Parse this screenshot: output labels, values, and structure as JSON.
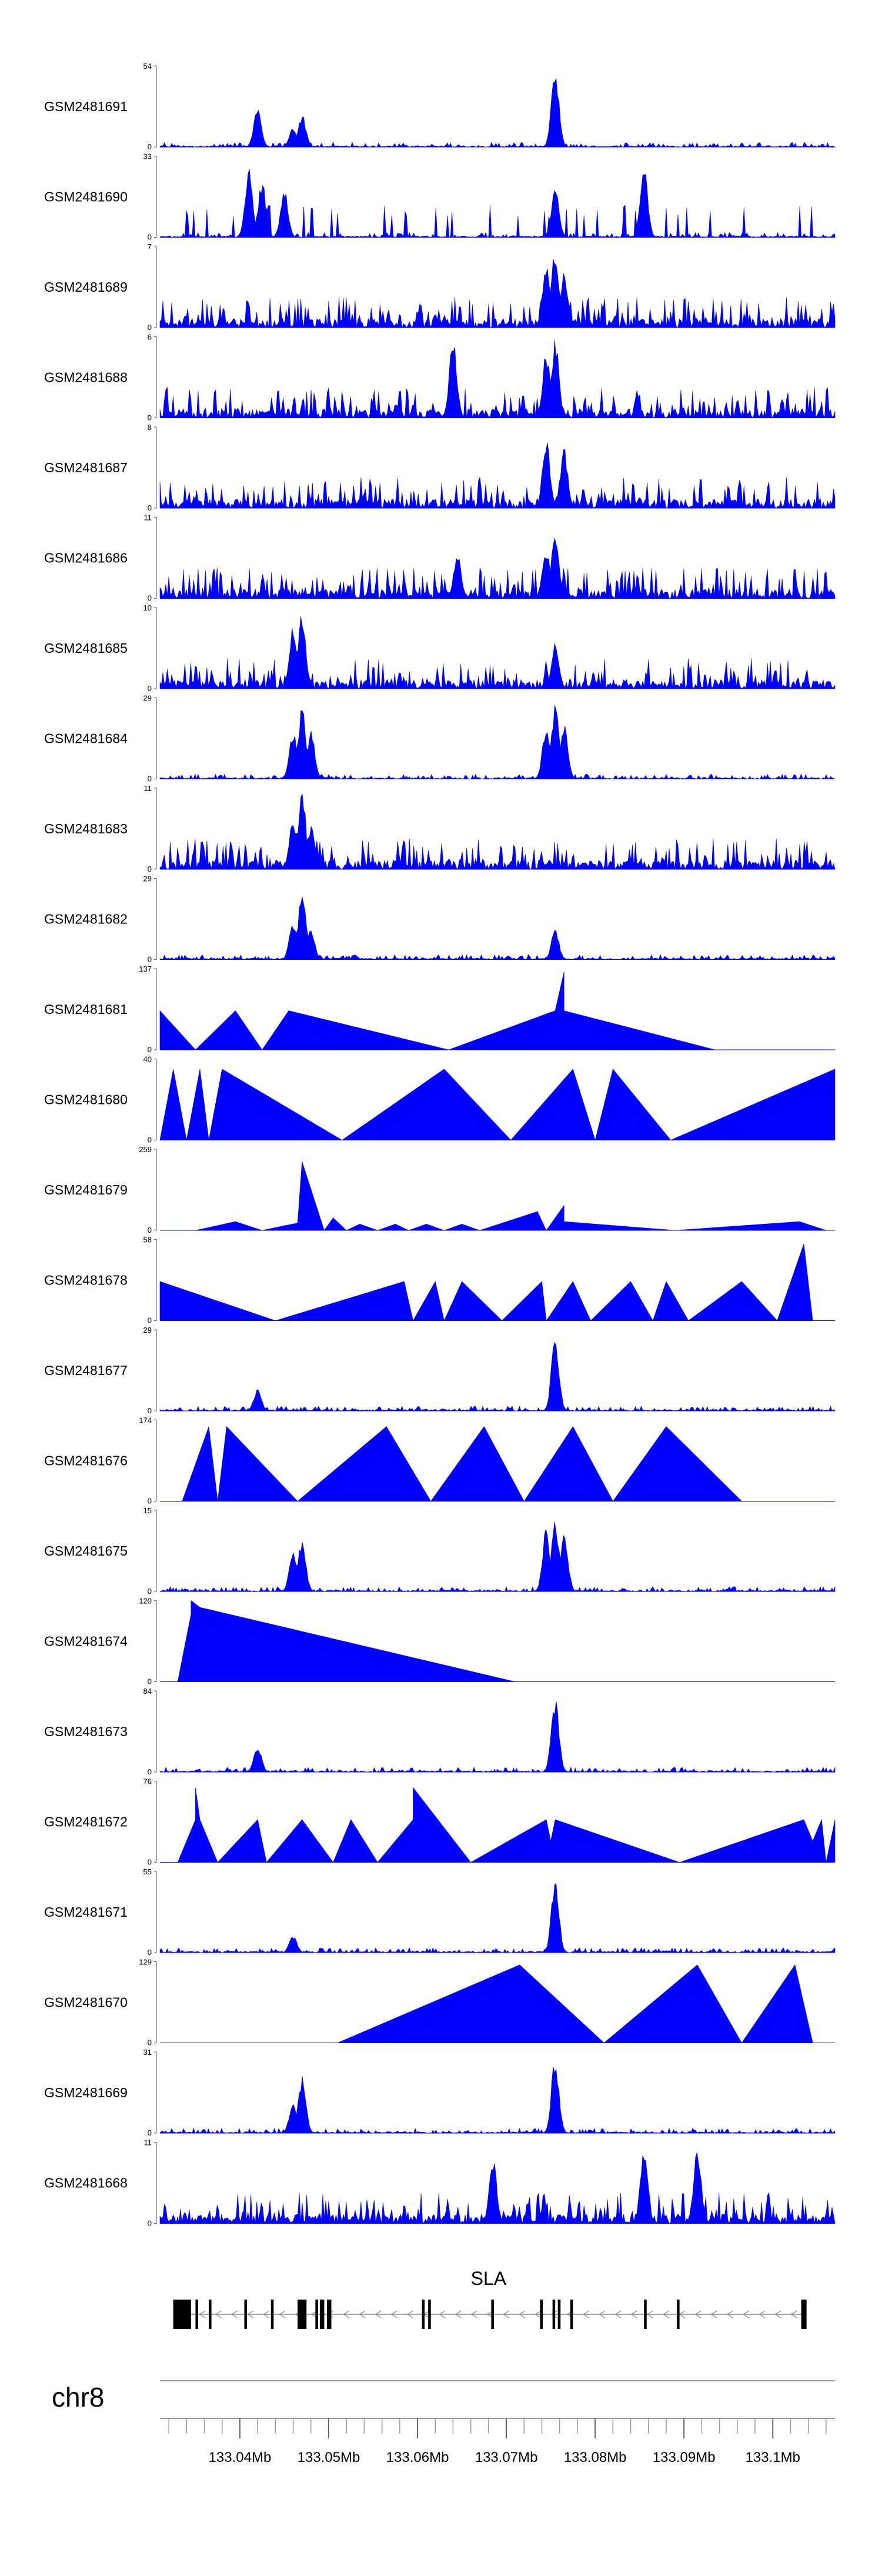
{
  "chart_data": {
    "type": "area",
    "title": "",
    "region": {
      "chromosome": "chr8",
      "start_mb": 133.031,
      "end_mb": 133.107
    },
    "series_color": "#0000ff",
    "tracks": [
      {
        "name": "GSM2481691",
        "ymax": 54,
        "style": "signal",
        "peaks": [
          [
            133.042,
            28
          ],
          [
            133.046,
            13
          ],
          [
            133.047,
            22
          ],
          [
            133.0755,
            52
          ]
        ]
      },
      {
        "name": "GSM2481690",
        "ymax": 33,
        "style": "mixed",
        "peaks": [
          [
            133.041,
            29
          ],
          [
            133.0425,
            24
          ],
          [
            133.045,
            20
          ],
          [
            133.0755,
            22
          ],
          [
            133.0855,
            30
          ]
        ]
      },
      {
        "name": "GSM2481689",
        "ymax": 7,
        "style": "signal",
        "peaks": [
          [
            133.0745,
            6
          ],
          [
            133.0755,
            7
          ],
          [
            133.0765,
            5
          ]
        ]
      },
      {
        "name": "GSM2481688",
        "ymax": 6,
        "style": "signal",
        "peaks": [
          [
            133.064,
            6
          ],
          [
            133.0745,
            5
          ],
          [
            133.0755,
            6
          ]
        ]
      },
      {
        "name": "GSM2481687",
        "ymax": 8,
        "style": "signal",
        "peaks": [
          [
            133.0745,
            7
          ],
          [
            133.0765,
            6
          ]
        ]
      },
      {
        "name": "GSM2481686",
        "ymax": 11,
        "style": "signal",
        "peaks": [
          [
            133.0645,
            6
          ],
          [
            133.0745,
            7
          ],
          [
            133.0755,
            10
          ]
        ]
      },
      {
        "name": "GSM2481685",
        "ymax": 10,
        "style": "signal",
        "peaks": [
          [
            133.046,
            8
          ],
          [
            133.047,
            10
          ],
          [
            133.0755,
            6
          ]
        ]
      },
      {
        "name": "GSM2481684",
        "ymax": 29,
        "style": "signal",
        "peaks": [
          [
            133.046,
            18
          ],
          [
            133.047,
            26
          ],
          [
            133.048,
            18
          ],
          [
            133.0745,
            20
          ],
          [
            133.0755,
            27
          ],
          [
            133.0765,
            20
          ]
        ]
      },
      {
        "name": "GSM2481683",
        "ymax": 11,
        "style": "signal",
        "peaks": [
          [
            133.046,
            7
          ],
          [
            133.047,
            11
          ],
          [
            133.048,
            6
          ]
        ]
      },
      {
        "name": "GSM2481682",
        "ymax": 29,
        "style": "signal",
        "peaks": [
          [
            133.046,
            14
          ],
          [
            133.047,
            27
          ],
          [
            133.048,
            11
          ],
          [
            133.0755,
            11
          ]
        ]
      },
      {
        "name": "GSM2481681",
        "ymax": 137,
        "style": "segments",
        "vertices": [
          [
            133.031,
            66
          ],
          [
            133.035,
            0
          ],
          [
            133.0395,
            66
          ],
          [
            133.0425,
            0
          ],
          [
            133.0455,
            66
          ],
          [
            133.0635,
            0
          ],
          [
            133.0755,
            66
          ],
          [
            133.0765,
            132
          ],
          [
            133.0765,
            66
          ],
          [
            133.0935,
            0
          ]
        ]
      },
      {
        "name": "GSM2481680",
        "ymax": 40,
        "style": "segments",
        "vertices": [
          [
            133.031,
            0
          ],
          [
            133.0325,
            35
          ],
          [
            133.034,
            0
          ],
          [
            133.0355,
            35
          ],
          [
            133.0365,
            0
          ],
          [
            133.038,
            35
          ],
          [
            133.0515,
            0
          ],
          [
            133.063,
            35
          ],
          [
            133.0705,
            0
          ],
          [
            133.0775,
            35
          ],
          [
            133.08,
            0
          ],
          [
            133.082,
            35
          ],
          [
            133.0885,
            0
          ],
          [
            133.107,
            35
          ]
        ]
      },
      {
        "name": "GSM2481679",
        "ymax": 259,
        "style": "segments",
        "vertices": [
          [
            133.035,
            0
          ],
          [
            133.0395,
            28
          ],
          [
            133.0425,
            0
          ],
          [
            133.045,
            15
          ],
          [
            133.0465,
            23
          ],
          [
            133.047,
            220
          ],
          [
            133.0495,
            0
          ],
          [
            133.0505,
            40
          ],
          [
            133.052,
            0
          ],
          [
            133.0535,
            20
          ],
          [
            133.0555,
            0
          ],
          [
            133.0575,
            20
          ],
          [
            133.059,
            0
          ],
          [
            133.061,
            20
          ],
          [
            133.063,
            0
          ],
          [
            133.065,
            20
          ],
          [
            133.067,
            0
          ],
          [
            133.0735,
            60
          ],
          [
            133.0745,
            0
          ],
          [
            133.0765,
            80
          ],
          [
            133.0765,
            28
          ],
          [
            133.089,
            0
          ],
          [
            133.103,
            28
          ],
          [
            133.106,
            0
          ]
        ]
      },
      {
        "name": "GSM2481678",
        "ymax": 58,
        "style": "segments",
        "vertices": [
          [
            133.031,
            28
          ],
          [
            133.044,
            0
          ],
          [
            133.0585,
            28
          ],
          [
            133.0595,
            0
          ],
          [
            133.062,
            28
          ],
          [
            133.063,
            0
          ],
          [
            133.065,
            28
          ],
          [
            133.0695,
            0
          ],
          [
            133.074,
            28
          ],
          [
            133.0745,
            0
          ],
          [
            133.0775,
            28
          ],
          [
            133.0795,
            0
          ],
          [
            133.084,
            28
          ],
          [
            133.0865,
            0
          ],
          [
            133.088,
            28
          ],
          [
            133.0905,
            0
          ],
          [
            133.0965,
            28
          ],
          [
            133.1005,
            0
          ],
          [
            133.1035,
            55
          ],
          [
            133.1045,
            0
          ]
        ]
      },
      {
        "name": "GSM2481677",
        "ymax": 29,
        "style": "signal",
        "peaks": [
          [
            133.042,
            8
          ],
          [
            133.0755,
            27
          ]
        ]
      },
      {
        "name": "GSM2481676",
        "ymax": 174,
        "style": "segments",
        "vertices": [
          [
            133.0335,
            0
          ],
          [
            133.0365,
            160
          ],
          [
            133.0375,
            0
          ],
          [
            133.0385,
            160
          ],
          [
            133.0465,
            0
          ],
          [
            133.0565,
            160
          ],
          [
            133.0615,
            0
          ],
          [
            133.0675,
            160
          ],
          [
            133.072,
            0
          ],
          [
            133.0775,
            160
          ],
          [
            133.082,
            0
          ],
          [
            133.088,
            160
          ],
          [
            133.0965,
            0
          ]
        ]
      },
      {
        "name": "GSM2481675",
        "ymax": 15,
        "style": "signal",
        "peaks": [
          [
            133.046,
            8
          ],
          [
            133.047,
            10
          ],
          [
            133.0745,
            12
          ],
          [
            133.0755,
            14
          ],
          [
            133.0765,
            12
          ]
        ]
      },
      {
        "name": "GSM2481674",
        "ymax": 120,
        "style": "segments",
        "vertices": [
          [
            133.033,
            0
          ],
          [
            133.0345,
            100
          ],
          [
            133.0345,
            120
          ],
          [
            133.0355,
            110
          ],
          [
            133.071,
            0
          ]
        ]
      },
      {
        "name": "GSM2481673",
        "ymax": 84,
        "style": "signal",
        "peaks": [
          [
            133.042,
            28
          ],
          [
            133.0755,
            80
          ]
        ]
      },
      {
        "name": "GSM2481672",
        "ymax": 76,
        "style": "segments",
        "vertices": [
          [
            133.033,
            0
          ],
          [
            133.035,
            40
          ],
          [
            133.035,
            70
          ],
          [
            133.0355,
            40
          ],
          [
            133.0375,
            0
          ],
          [
            133.042,
            40
          ],
          [
            133.043,
            0
          ],
          [
            133.047,
            40
          ],
          [
            133.0505,
            0
          ],
          [
            133.0525,
            40
          ],
          [
            133.0555,
            0
          ],
          [
            133.0595,
            40
          ],
          [
            133.0595,
            70
          ],
          [
            133.066,
            0
          ],
          [
            133.0745,
            40
          ],
          [
            133.075,
            20
          ],
          [
            133.0755,
            40
          ],
          [
            133.0895,
            0
          ],
          [
            133.1035,
            40
          ],
          [
            133.1045,
            20
          ],
          [
            133.1055,
            40
          ],
          [
            133.106,
            0
          ],
          [
            133.107,
            40
          ]
        ]
      },
      {
        "name": "GSM2481671",
        "ymax": 55,
        "style": "signal",
        "peaks": [
          [
            133.046,
            12
          ],
          [
            133.0755,
            52
          ]
        ]
      },
      {
        "name": "GSM2481670",
        "ymax": 129,
        "style": "segments",
        "vertices": [
          [
            133.051,
            0
          ],
          [
            133.0715,
            124
          ],
          [
            133.081,
            0
          ],
          [
            133.0915,
            124
          ],
          [
            133.0965,
            0
          ],
          [
            133.1025,
            124
          ],
          [
            133.1045,
            0
          ]
        ]
      },
      {
        "name": "GSM2481669",
        "ymax": 31,
        "style": "signal",
        "peaks": [
          [
            133.046,
            12
          ],
          [
            133.047,
            22
          ],
          [
            133.0755,
            30
          ]
        ]
      },
      {
        "name": "GSM2481668",
        "ymax": 11,
        "style": "signal",
        "peaks": [
          [
            133.0855,
            10
          ],
          [
            133.0915,
            11
          ],
          [
            133.0685,
            9
          ]
        ]
      }
    ],
    "gene": {
      "name": "SLA",
      "strand": "-",
      "start_mb": 133.0325,
      "end_mb": 133.1035,
      "exons": [
        [
          133.0325,
          133.0345
        ],
        [
          133.035,
          133.0353
        ],
        [
          133.0365,
          133.0368
        ],
        [
          133.0405,
          133.0408
        ],
        [
          133.0435,
          133.0438
        ],
        [
          133.0465,
          133.0475
        ],
        [
          133.0485,
          133.0488
        ],
        [
          133.049,
          133.0495
        ],
        [
          133.0498,
          133.0503
        ],
        [
          133.0605,
          133.0608
        ],
        [
          133.0612,
          133.0615
        ],
        [
          133.0683,
          133.0686
        ],
        [
          133.0738,
          133.0741
        ],
        [
          133.0752,
          133.0755
        ],
        [
          133.0758,
          133.0761
        ],
        [
          133.0772,
          133.0775
        ],
        [
          133.0855,
          133.0858
        ],
        [
          133.0892,
          133.0895
        ],
        [
          133.1032,
          133.1038
        ]
      ]
    },
    "axis": {
      "chromosome_label": "chr8",
      "tick_labels": [
        "133.04Mb",
        "133.05Mb",
        "133.06Mb",
        "133.07Mb",
        "133.08Mb",
        "133.09Mb",
        "133.1Mb"
      ],
      "tick_values_mb": [
        133.04,
        133.05,
        133.06,
        133.07,
        133.08,
        133.09,
        133.1
      ],
      "minor_step_mb": 0.002
    }
  }
}
